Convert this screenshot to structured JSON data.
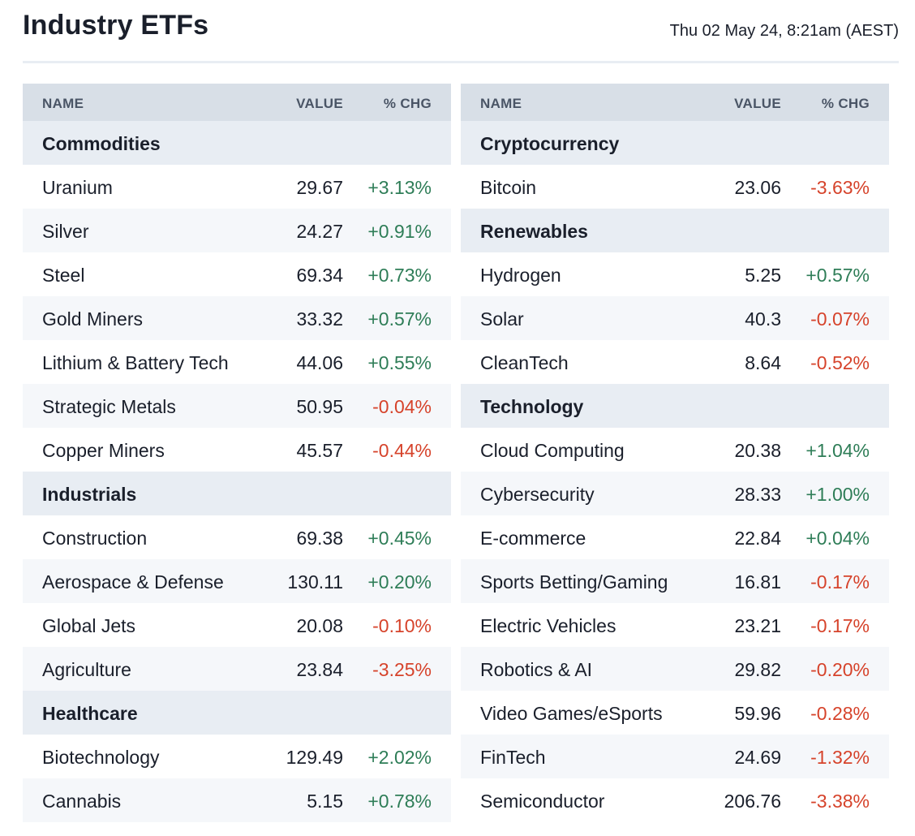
{
  "header": {
    "title": "Industry ETFs",
    "timestamp": "Thu 02 May 24, 8:21am (AEST)"
  },
  "columns_header": {
    "name": "NAME",
    "value": "VALUE",
    "chg": "% CHG"
  },
  "colors": {
    "positive": "#2e7d57",
    "negative": "#d6432b",
    "category_bg": "#e8edf3",
    "header_bg": "#d8dfe7"
  },
  "left": [
    {
      "category": "Commodities",
      "items": [
        {
          "name": "Uranium",
          "value": "29.67",
          "chg": "+3.13%"
        },
        {
          "name": "Silver",
          "value": "24.27",
          "chg": "+0.91%"
        },
        {
          "name": "Steel",
          "value": "69.34",
          "chg": "+0.73%"
        },
        {
          "name": "Gold Miners",
          "value": "33.32",
          "chg": "+0.57%"
        },
        {
          "name": "Lithium & Battery Tech",
          "value": "44.06",
          "chg": "+0.55%"
        },
        {
          "name": "Strategic Metals",
          "value": "50.95",
          "chg": "-0.04%"
        },
        {
          "name": "Copper Miners",
          "value": "45.57",
          "chg": "-0.44%"
        }
      ]
    },
    {
      "category": "Industrials",
      "items": [
        {
          "name": "Construction",
          "value": "69.38",
          "chg": "+0.45%"
        },
        {
          "name": "Aerospace & Defense",
          "value": "130.11",
          "chg": "+0.20%"
        },
        {
          "name": "Global Jets",
          "value": "20.08",
          "chg": "-0.10%"
        },
        {
          "name": "Agriculture",
          "value": "23.84",
          "chg": "-3.25%"
        }
      ]
    },
    {
      "category": "Healthcare",
      "items": [
        {
          "name": "Biotechnology",
          "value": "129.49",
          "chg": "+2.02%"
        },
        {
          "name": "Cannabis",
          "value": "5.15",
          "chg": "+0.78%"
        }
      ]
    }
  ],
  "right": [
    {
      "category": "Cryptocurrency",
      "items": [
        {
          "name": "Bitcoin",
          "value": "23.06",
          "chg": "-3.63%"
        }
      ]
    },
    {
      "category": "Renewables",
      "items": [
        {
          "name": "Hydrogen",
          "value": "5.25",
          "chg": "+0.57%"
        },
        {
          "name": "Solar",
          "value": "40.3",
          "chg": "-0.07%"
        },
        {
          "name": "CleanTech",
          "value": "8.64",
          "chg": "-0.52%"
        }
      ]
    },
    {
      "category": "Technology",
      "items": [
        {
          "name": "Cloud Computing",
          "value": "20.38",
          "chg": "+1.04%"
        },
        {
          "name": "Cybersecurity",
          "value": "28.33",
          "chg": "+1.00%"
        },
        {
          "name": "E-commerce",
          "value": "22.84",
          "chg": "+0.04%"
        },
        {
          "name": "Sports Betting/Gaming",
          "value": "16.81",
          "chg": "-0.17%"
        },
        {
          "name": "Electric Vehicles",
          "value": "23.21",
          "chg": "-0.17%"
        },
        {
          "name": "Robotics & AI",
          "value": "29.82",
          "chg": "-0.20%"
        },
        {
          "name": "Video Games/eSports",
          "value": "59.96",
          "chg": "-0.28%"
        },
        {
          "name": "FinTech",
          "value": "24.69",
          "chg": "-1.32%"
        },
        {
          "name": "Semiconductor",
          "value": "206.76",
          "chg": "-3.38%"
        }
      ]
    }
  ]
}
